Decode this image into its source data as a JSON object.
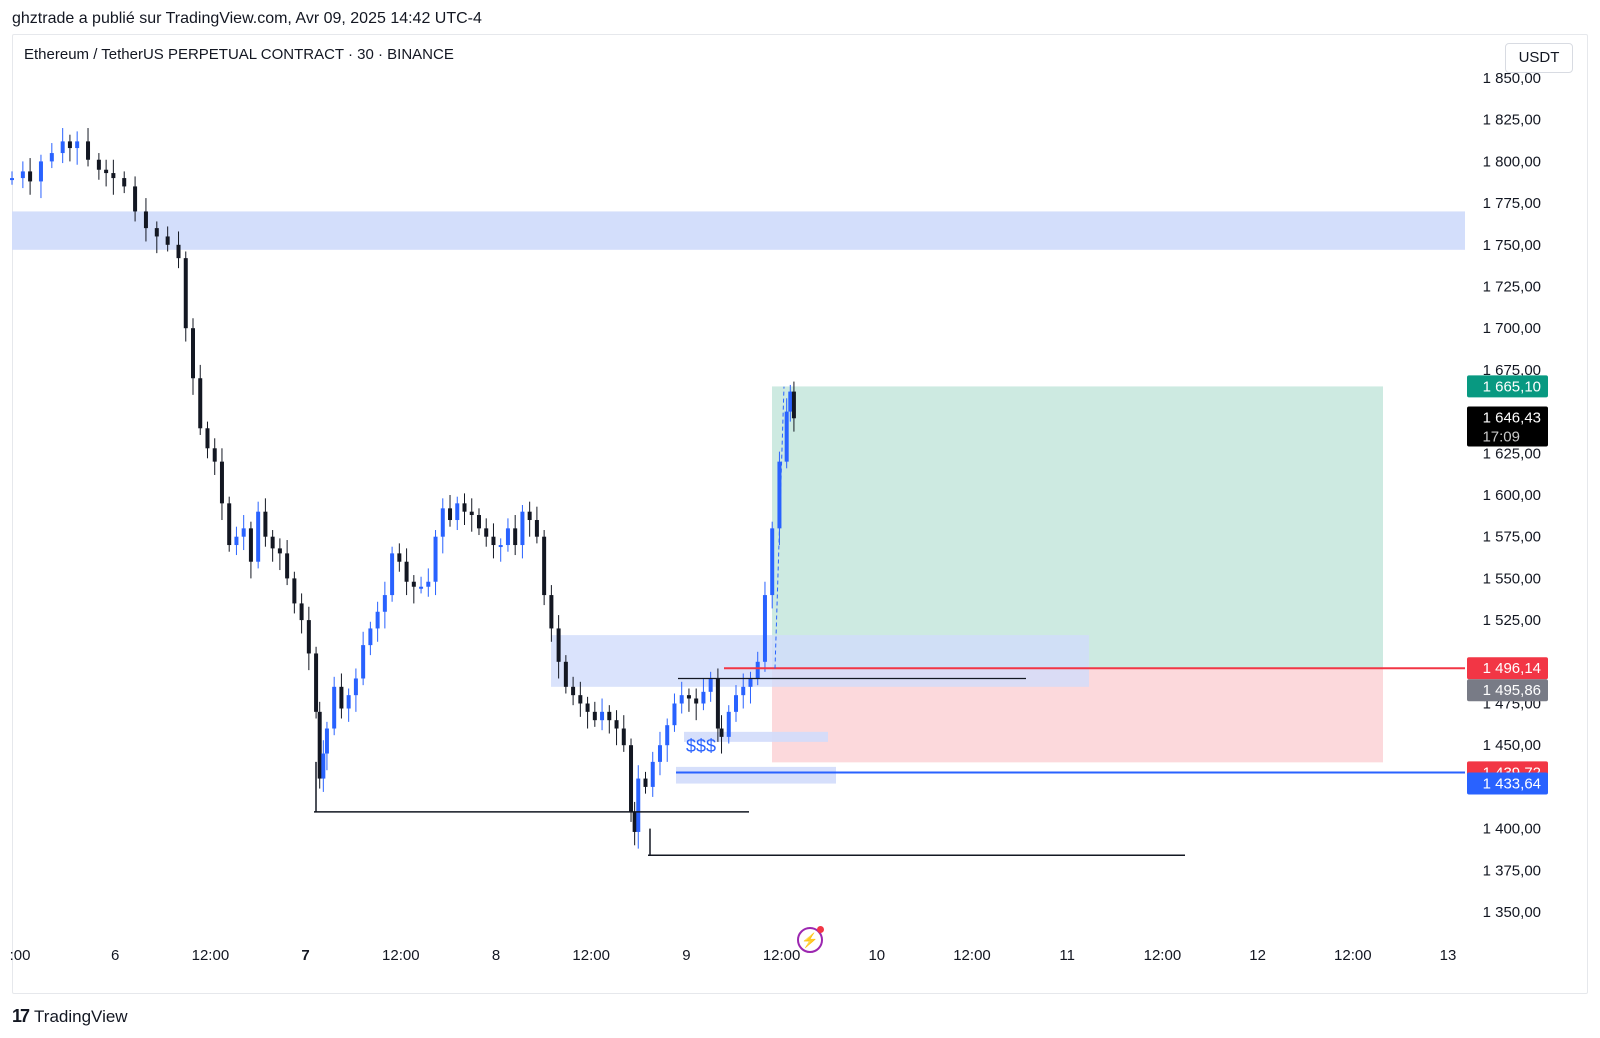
{
  "header": {
    "published_by": "ghztrade a publié sur TradingView.com, Avr 09, 2025 14:42 UTC-4"
  },
  "chart": {
    "symbol_title": "Ethereum / TetherUS PERPETUAL CONTRACT · 30 · BINANCE",
    "currency": "USDT",
    "price_labels": {
      "target": "1 665,10",
      "last": "1 646,43",
      "countdown": "17:09",
      "entry_red": "1 496,14",
      "entry_gray": "1 495,86",
      "stop": "1 439,72",
      "blue_level": "1 433,64"
    },
    "annotation": "$$$",
    "colors": {
      "up": "#2962ff",
      "down": "#131722",
      "zone_blue": "#d1dcfb",
      "profit": "#cdeae1",
      "loss": "#fcd9dc",
      "target_label": "#089981",
      "stop_label": "#f23645",
      "blue_label": "#2962ff"
    }
  },
  "footer": {
    "brand": "TradingView"
  },
  "icons": {
    "alert": "flash-alert-icon",
    "logo": "tradingview-logo-icon"
  },
  "chart_data": {
    "type": "candlestick",
    "title": "Ethereum / TetherUS PERPETUAL CONTRACT · 30 · BINANCE",
    "ylabel": "USDT",
    "ylim": [
      1330,
      1860
    ],
    "y_ticks": [
      "1 350,00",
      "1 375,00",
      "1 400,00",
      "1 450,00",
      "1 475,00",
      "1 525,00",
      "1 550,00",
      "1 575,00",
      "1 600,00",
      "1 625,00",
      "1 675,00",
      "1 700,00",
      "1 725,00",
      "1 750,00",
      "1 775,00",
      "1 800,00",
      "1 825,00",
      "1 850,00"
    ],
    "x_ticks": [
      ":00",
      "6",
      "12:00",
      "7",
      "12:00",
      "8",
      "12:00",
      "9",
      "12:00",
      "10",
      "12:00",
      "11",
      "12:00",
      "12",
      "12:00",
      "13"
    ],
    "price_path": [
      [
        0,
        1790
      ],
      [
        0.03,
        1794
      ],
      [
        0.05,
        1788
      ],
      [
        0.08,
        1800
      ],
      [
        0.11,
        1805
      ],
      [
        0.14,
        1812
      ],
      [
        0.16,
        1808
      ],
      [
        0.18,
        1812
      ],
      [
        0.21,
        1801
      ],
      [
        0.24,
        1795
      ],
      [
        0.26,
        1793
      ],
      [
        0.28,
        1790
      ],
      [
        0.31,
        1785
      ],
      [
        0.34,
        1770
      ],
      [
        0.37,
        1760
      ],
      [
        0.4,
        1755
      ],
      [
        0.43,
        1750
      ],
      [
        0.46,
        1742
      ],
      [
        0.48,
        1700
      ],
      [
        0.5,
        1670
      ],
      [
        0.52,
        1640
      ],
      [
        0.54,
        1628
      ],
      [
        0.56,
        1620
      ],
      [
        0.58,
        1595
      ],
      [
        0.6,
        1570
      ],
      [
        0.62,
        1575
      ],
      [
        0.64,
        1580
      ],
      [
        0.66,
        1560
      ],
      [
        0.68,
        1590
      ],
      [
        0.7,
        1575
      ],
      [
        0.72,
        1568
      ],
      [
        0.74,
        1565
      ],
      [
        0.76,
        1550
      ],
      [
        0.78,
        1535
      ],
      [
        0.8,
        1525
      ],
      [
        0.82,
        1505
      ],
      [
        0.84,
        1470
      ],
      [
        0.85,
        1430
      ],
      [
        0.86,
        1445
      ],
      [
        0.87,
        1460
      ],
      [
        0.89,
        1485
      ],
      [
        0.91,
        1472
      ],
      [
        0.93,
        1480
      ],
      [
        0.95,
        1490
      ],
      [
        0.97,
        1510
      ],
      [
        0.99,
        1520
      ],
      [
        1.01,
        1530
      ],
      [
        1.03,
        1540
      ],
      [
        1.05,
        1565
      ],
      [
        1.07,
        1560
      ],
      [
        1.09,
        1548
      ],
      [
        1.11,
        1545
      ],
      [
        1.13,
        1545
      ],
      [
        1.15,
        1548
      ],
      [
        1.17,
        1575
      ],
      [
        1.19,
        1592
      ],
      [
        1.21,
        1585
      ],
      [
        1.23,
        1595
      ],
      [
        1.25,
        1590
      ],
      [
        1.27,
        1588
      ],
      [
        1.29,
        1580
      ],
      [
        1.31,
        1575
      ],
      [
        1.33,
        1570
      ],
      [
        1.35,
        1570
      ],
      [
        1.37,
        1580
      ],
      [
        1.39,
        1570
      ],
      [
        1.41,
        1590
      ],
      [
        1.43,
        1585
      ],
      [
        1.45,
        1575
      ],
      [
        1.47,
        1540
      ],
      [
        1.49,
        1520
      ],
      [
        1.51,
        1500
      ],
      [
        1.53,
        1485
      ],
      [
        1.55,
        1480
      ],
      [
        1.57,
        1475
      ],
      [
        1.59,
        1470
      ],
      [
        1.61,
        1465
      ],
      [
        1.63,
        1470
      ],
      [
        1.65,
        1465
      ],
      [
        1.67,
        1460
      ],
      [
        1.69,
        1450
      ],
      [
        1.71,
        1410
      ],
      [
        1.72,
        1398
      ],
      [
        1.73,
        1430
      ],
      [
        1.75,
        1425
      ],
      [
        1.77,
        1440
      ],
      [
        1.79,
        1450
      ],
      [
        1.81,
        1462
      ],
      [
        1.83,
        1475
      ],
      [
        1.85,
        1480
      ],
      [
        1.87,
        1478
      ],
      [
        1.89,
        1475
      ],
      [
        1.91,
        1482
      ],
      [
        1.93,
        1490
      ],
      [
        1.95,
        1460
      ],
      [
        1.96,
        1455
      ],
      [
        1.98,
        1470
      ],
      [
        2.0,
        1480
      ],
      [
        2.02,
        1485
      ],
      [
        2.04,
        1490
      ],
      [
        2.06,
        1500
      ],
      [
        2.08,
        1540
      ],
      [
        2.1,
        1580
      ],
      [
        2.12,
        1620
      ],
      [
        2.14,
        1650
      ],
      [
        2.15,
        1662
      ],
      [
        2.16,
        1646
      ]
    ],
    "series": [
      {
        "name": "",
        "type": "horizontal_zone",
        "from": 1747,
        "to": 1770
      },
      {
        "name": "",
        "type": "horizontal_zone",
        "from": 1485,
        "to": 1516
      },
      {
        "name": "",
        "type": "long_position",
        "entry": 1496.14,
        "target": 1665.1,
        "stop": 1439.72
      },
      {
        "name": "",
        "type": "horizontal_line",
        "value": 1433.64
      },
      {
        "name": "",
        "type": "horizontal_line",
        "value": 1410
      },
      {
        "name": "",
        "type": "horizontal_line",
        "value": 1384
      },
      {
        "name": "",
        "type": "horizontal_line",
        "value": 1490
      }
    ],
    "grid": false
  }
}
